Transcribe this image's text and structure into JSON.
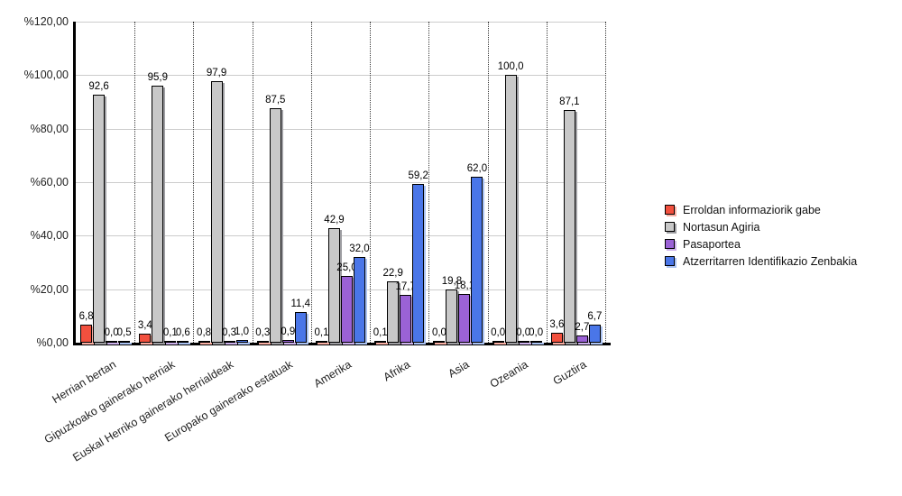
{
  "chart_data": {
    "type": "bar",
    "title": "",
    "xlabel": "",
    "ylabel": "",
    "ylim": [
      0,
      120
    ],
    "ytick_step": 20,
    "ytick_labels": [
      "%0,00",
      "%20,00",
      "%40,00",
      "%60,00",
      "%80,00",
      "%100,00",
      "%120,00"
    ],
    "grid": {
      "horizontal": "solid-light-gray",
      "vertical": "dotted-category-separators"
    },
    "legend_position": "right",
    "categories": [
      "Herrian bertan",
      "Gipuzkoako gainerako herriak",
      "Euskal Herriko gainerako herrialdeak",
      "Europako gainerako estatuak",
      "Amerika",
      "Afrika",
      "Asia",
      "Ozeania",
      "Guztira"
    ],
    "series": [
      {
        "name": "Erroldan informaziorik gabe",
        "color": "#F2503E",
        "shadow_color": "#F9AFA3",
        "values": [
          6.8,
          3.4,
          0.8,
          0.3,
          0.1,
          0.1,
          0.0,
          0.0,
          3.6
        ],
        "labels": [
          "6,8",
          "3,4",
          "0,8",
          "0,3",
          "0,1",
          "0,1",
          "0,0",
          "0,0",
          "3,6"
        ]
      },
      {
        "name": "Nortasun Agiria",
        "color": "#C8C8C8",
        "shadow_color": "#9E9EA2",
        "values": [
          92.6,
          95.9,
          97.9,
          87.5,
          42.9,
          22.9,
          19.8,
          100.0,
          87.1
        ],
        "labels": [
          "92,6",
          "95,9",
          "97,9",
          "87,5",
          "42,9",
          "22,9",
          "19,8",
          "100,0",
          "87,1"
        ]
      },
      {
        "name": "Pasaportea",
        "color": "#9B62D6",
        "shadow_color": "#CDB1EC",
        "values": [
          0.0,
          0.1,
          0.3,
          0.9,
          25.0,
          17.7,
          18.1,
          0.0,
          2.7
        ],
        "labels": [
          "0,0",
          "0,1",
          "0,3",
          "0,9",
          "25,0",
          "17,7",
          "18,1",
          "0,0",
          "2,7"
        ]
      },
      {
        "name": "Atzerritarren Identifikazio Zenbakia",
        "color": "#4A76E8",
        "shadow_color": "#AAC2F2",
        "values": [
          0.5,
          0.6,
          1.0,
          11.4,
          32.0,
          59.2,
          62.0,
          0.0,
          6.7
        ],
        "labels": [
          "0,5",
          "0,6",
          "1,0",
          "11,4",
          "32,0",
          "59,2",
          "62,0",
          "0,0",
          "6,7"
        ]
      }
    ]
  }
}
